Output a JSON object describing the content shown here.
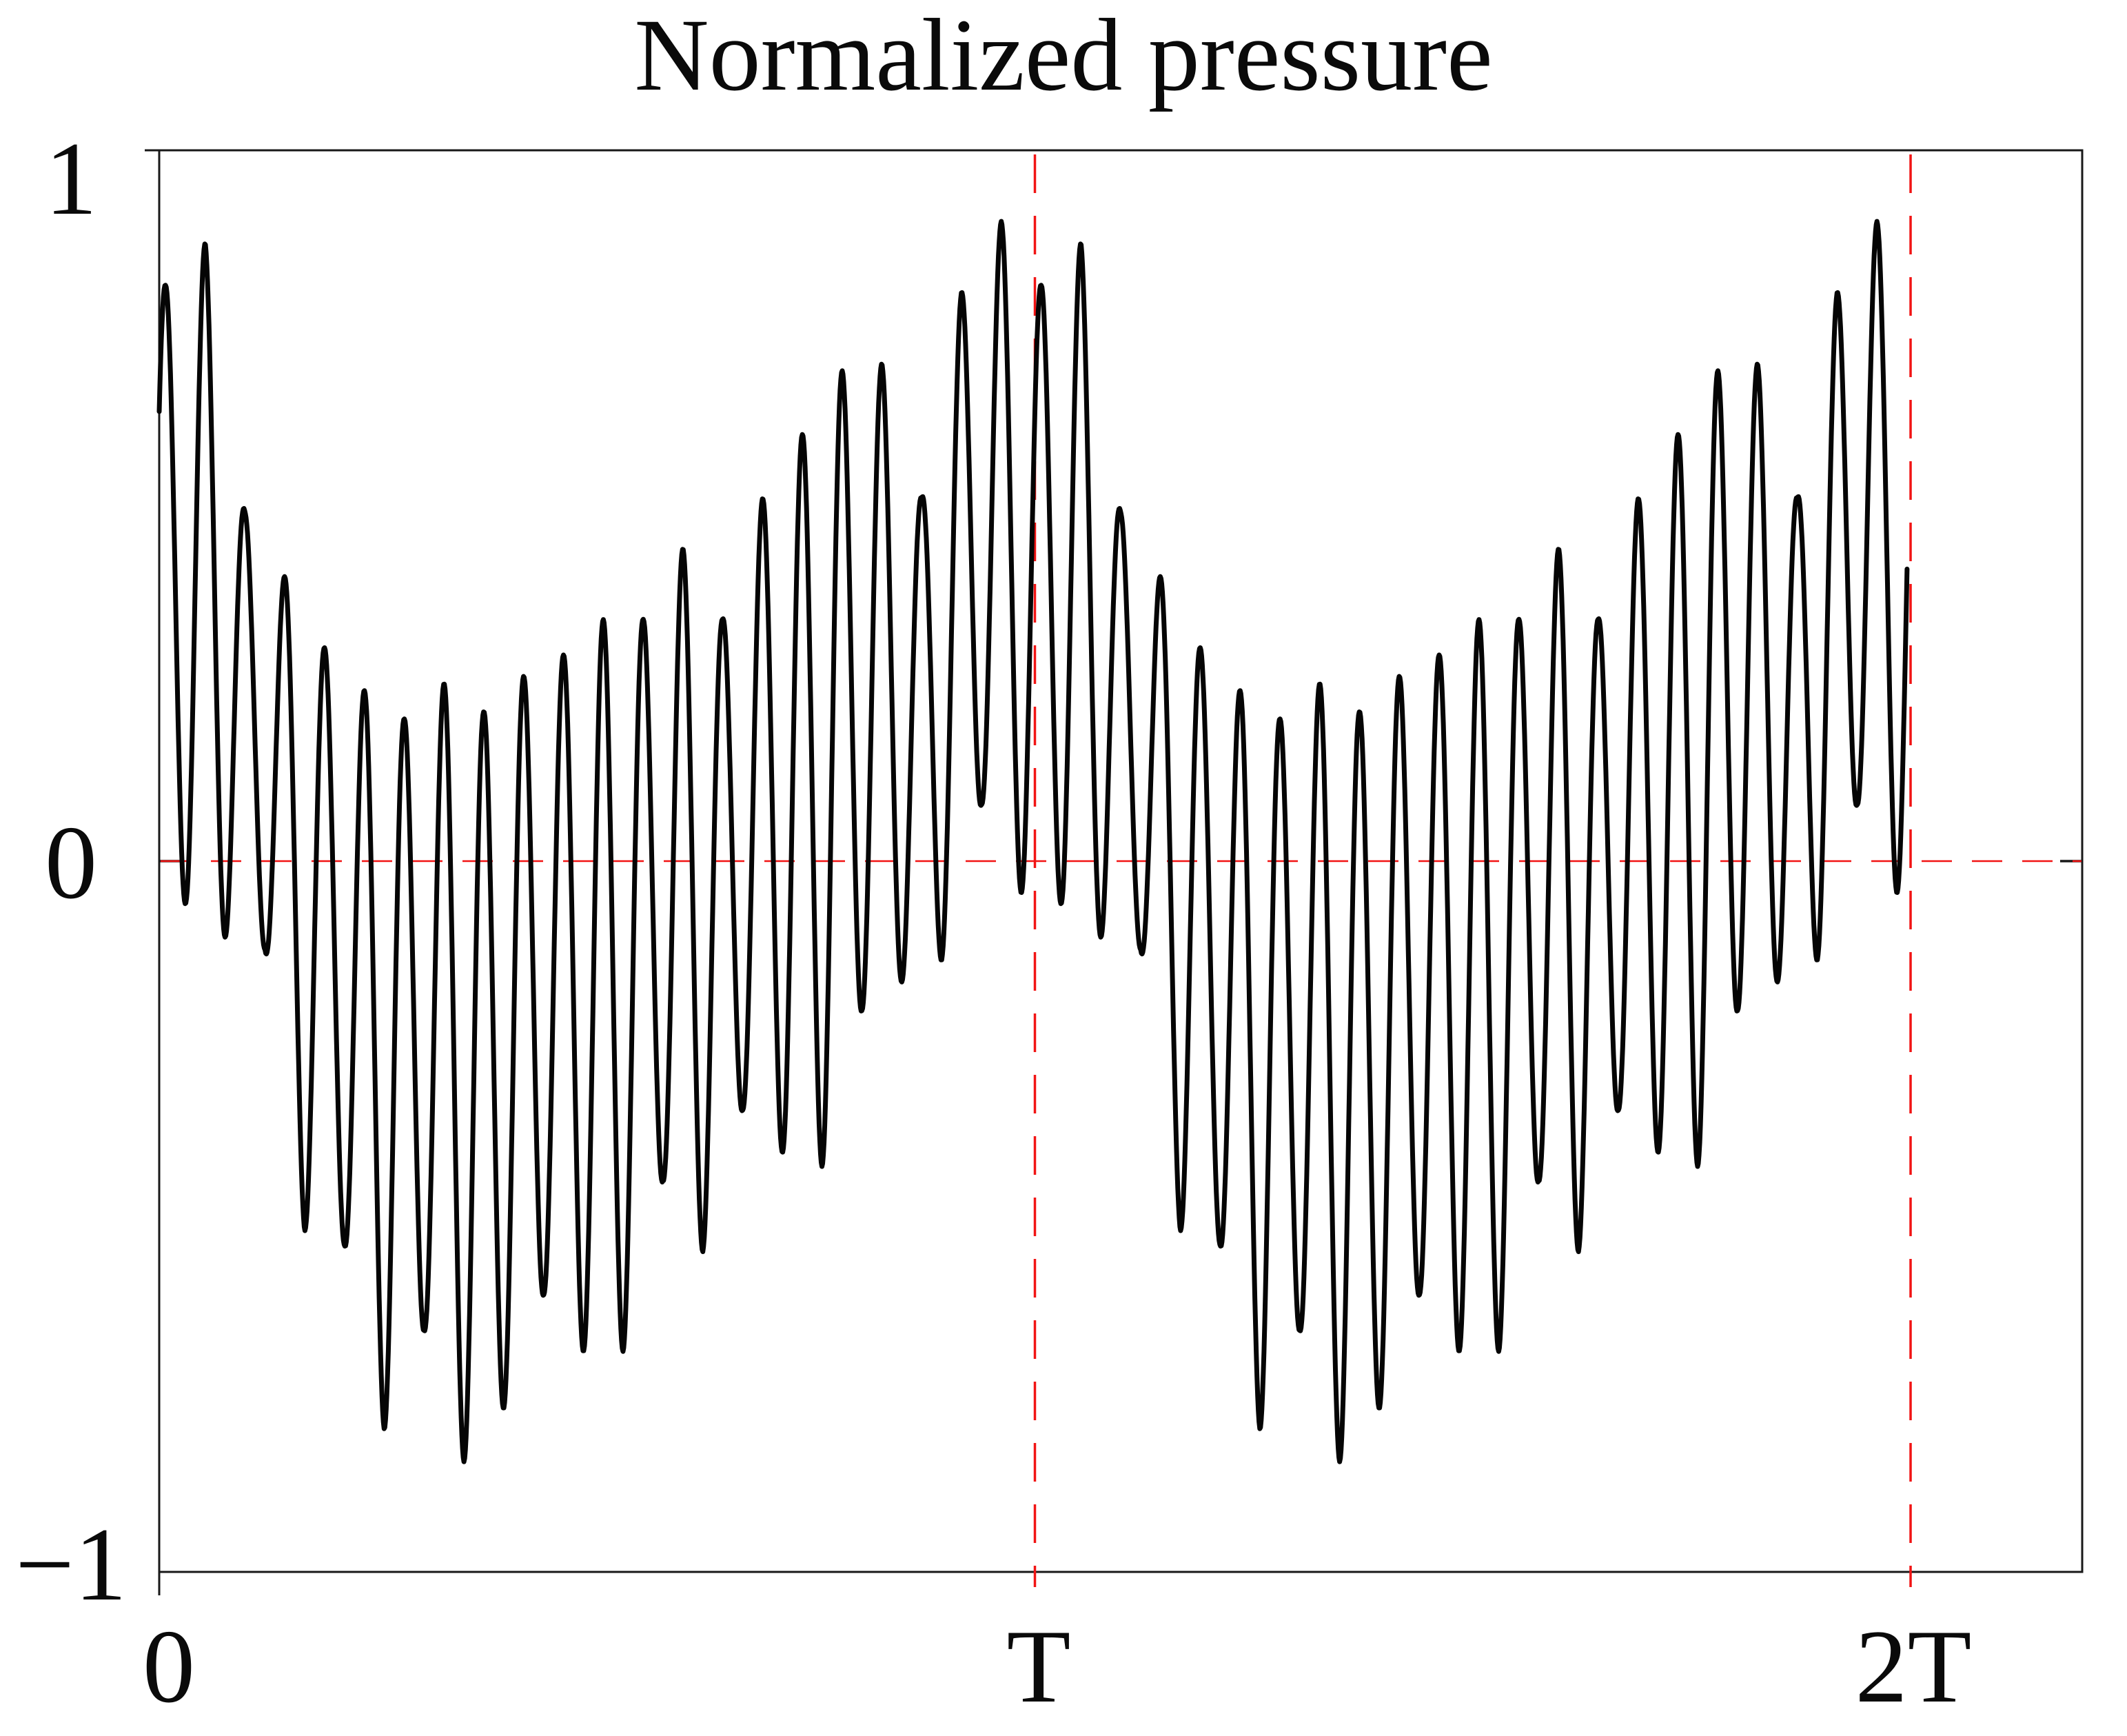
{
  "title": "Normalized pressure",
  "axes": {
    "y": {
      "ticks": [
        "1",
        "0",
        "−1"
      ]
    },
    "x": {
      "ticks": [
        "0",
        "T",
        "2T"
      ]
    }
  },
  "colors": {
    "waveform": "#050505",
    "reference_red": "#f11414",
    "axis": "#181818"
  },
  "chart_data": {
    "type": "line",
    "title": "Normalized pressure",
    "xlabel": "",
    "ylabel": "",
    "grid": false,
    "legend": false,
    "ylim": [
      -1,
      1
    ],
    "xlim_in_T": [
      0,
      2.197
    ],
    "y_tick_values": [
      1,
      0,
      -1
    ],
    "y_tick_labels": [
      "1",
      "0",
      "−1"
    ],
    "x_tick_labels": [
      "0",
      "T",
      "2T"
    ],
    "x_tick_positions_in_T": [
      0,
      1,
      2
    ],
    "reference_lines": [
      {
        "orientation": "horizontal",
        "value": 0,
        "style": "dashed",
        "color": "#f11414"
      },
      {
        "orientation": "vertical",
        "value_in_T": 1,
        "style": "dashed",
        "color": "#f11414"
      },
      {
        "orientation": "vertical",
        "value_in_T": 2,
        "style": "dashed",
        "color": "#f11414"
      }
    ],
    "series": [
      {
        "name": "normalized pressure waveform",
        "color": "#050505",
        "model": {
          "description": "Periodic (period T) amplitude-modulated oscillation: p(t) = mid(t) + amp(t)*sin(2*pi*22*t/T + phase), where mid=(U+L)/2 and amp=(U-L)/2 are linearly interpolated from the digitized peak envelope U and trough envelope L below (t in units of T within one period).",
          "carrier_cycles_per_T": 22,
          "carrier_phase_rad": 0.5969,
          "t_start_in_T": 0,
          "t_end_in_T": 1.9965,
          "samples_per_T": 1250,
          "peak_envelope": [
            [
              0.007,
              0.81
            ],
            [
              0.0525,
              0.87
            ],
            [
              0.098,
              0.49
            ],
            [
              0.1434,
              0.4
            ],
            [
              0.1889,
              0.3
            ],
            [
              0.2343,
              0.24
            ],
            [
              0.2798,
              0.2
            ],
            [
              0.3252,
              0.25
            ],
            [
              0.3707,
              0.21
            ],
            [
              0.4161,
              0.26
            ],
            [
              0.4616,
              0.29
            ],
            [
              0.507,
              0.34
            ],
            [
              0.5525,
              0.34
            ],
            [
              0.598,
              0.44
            ],
            [
              0.6434,
              0.34
            ],
            [
              0.6889,
              0.51
            ],
            [
              0.7343,
              0.6
            ],
            [
              0.7798,
              0.69
            ],
            [
              0.8252,
              0.7
            ],
            [
              0.8707,
              0.51
            ],
            [
              0.9161,
              0.8
            ],
            [
              0.9616,
              0.9
            ]
          ],
          "trough_envelope": [
            [
              0.0298,
              -0.06
            ],
            [
              0.0752,
              -0.107
            ],
            [
              0.1207,
              -0.124
            ],
            [
              0.1661,
              -0.52
            ],
            [
              0.2116,
              -0.54
            ],
            [
              0.257,
              -0.8
            ],
            [
              0.3025,
              -0.66
            ],
            [
              0.348,
              -0.845
            ],
            [
              0.3934,
              -0.77
            ],
            [
              0.4389,
              -0.61
            ],
            [
              0.4843,
              -0.69
            ],
            [
              0.5298,
              -0.69
            ],
            [
              0.5752,
              -0.45
            ],
            [
              0.6207,
              -0.55
            ],
            [
              0.6661,
              -0.35
            ],
            [
              0.7116,
              -0.41
            ],
            [
              0.757,
              -0.43
            ],
            [
              0.8025,
              -0.21
            ],
            [
              0.848,
              -0.17
            ],
            [
              0.8934,
              -0.14
            ],
            [
              0.9389,
              0.08
            ],
            [
              0.9843,
              -0.045
            ]
          ]
        }
      }
    ]
  }
}
